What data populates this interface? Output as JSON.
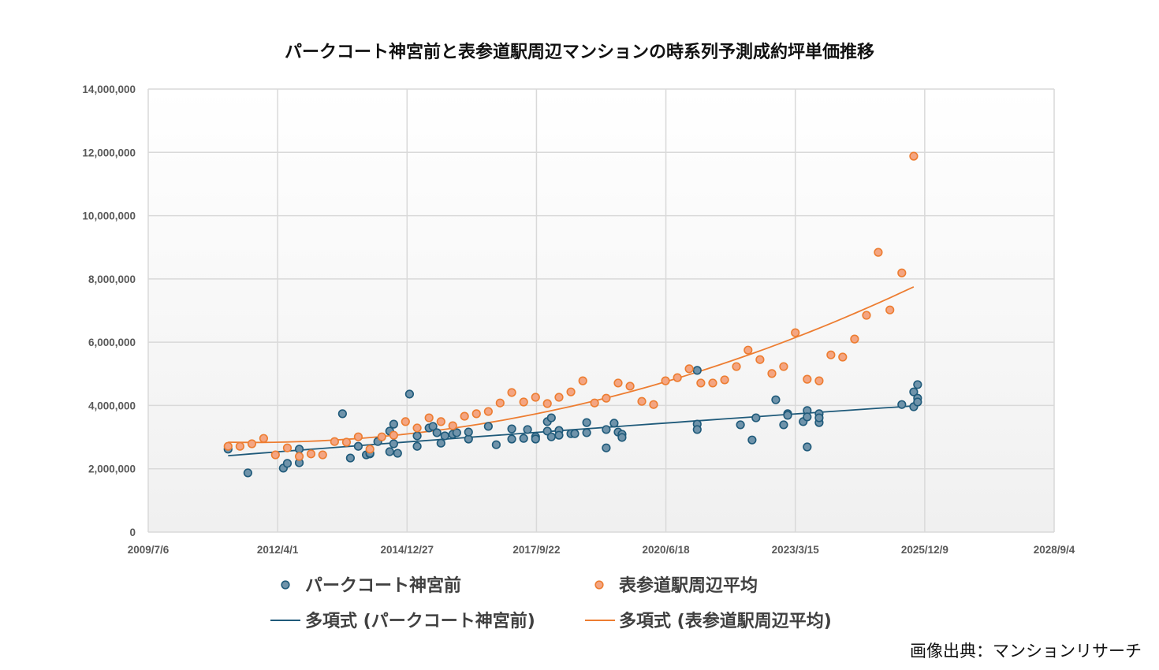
{
  "chart_data": {
    "type": "scatter",
    "title": "パークコート神宮前と表参道駅周辺マンションの時系列予測成約坪単価推移",
    "xlabel": "",
    "ylabel": "",
    "xlim": [
      "2009/7/6",
      "2028/9/4"
    ],
    "x_ticks": [
      "2009/7/6",
      "2012/4/1",
      "2014/12/27",
      "2017/9/22",
      "2020/6/18",
      "2023/3/15",
      "2025/12/9",
      "2028/9/4"
    ],
    "ylim": [
      0,
      14000000
    ],
    "y_ticks": [
      0,
      2000000,
      4000000,
      6000000,
      8000000,
      10000000,
      12000000,
      14000000
    ],
    "y_tick_labels": [
      "0",
      "2,000,000",
      "4,000,000",
      "6,000,000",
      "8,000,000",
      "10,000,000",
      "12,000,000",
      "14,000,000"
    ],
    "grid": true,
    "legend_position": "bottom",
    "series": [
      {
        "name": "パークコート神宮前",
        "color": "#1f5a7a",
        "fill": "#6f93aa",
        "trendline": {
          "type": "polynomial",
          "order": 2,
          "name": "多項式 (パークコート神宮前)"
        },
        "points": [
          [
            "2011/3",
            2620000
          ],
          [
            "2011/8",
            1870000
          ],
          [
            "2012/5",
            2020000
          ],
          [
            "2012/6",
            2170000
          ],
          [
            "2012/9",
            2190000
          ],
          [
            "2012/9",
            2620000
          ],
          [
            "2013/8",
            3740000
          ],
          [
            "2013/10",
            2340000
          ],
          [
            "2013/12",
            2710000
          ],
          [
            "2014/2",
            2440000
          ],
          [
            "2014/3",
            2470000
          ],
          [
            "2014/3",
            2490000
          ],
          [
            "2014/5",
            2860000
          ],
          [
            "2014/8",
            2540000
          ],
          [
            "2014/8",
            3190000
          ],
          [
            "2014/9",
            2790000
          ],
          [
            "2014/9",
            3410000
          ],
          [
            "2014/10",
            2490000
          ],
          [
            "2015/1",
            4360000
          ],
          [
            "2015/3",
            2710000
          ],
          [
            "2015/3",
            3040000
          ],
          [
            "2015/6",
            3290000
          ],
          [
            "2015/7",
            3340000
          ],
          [
            "2015/8",
            3140000
          ],
          [
            "2015/9",
            2810000
          ],
          [
            "2015/10",
            3040000
          ],
          [
            "2015/12",
            3090000
          ],
          [
            "2016/1",
            3140000
          ],
          [
            "2016/4",
            2940000
          ],
          [
            "2016/4",
            3160000
          ],
          [
            "2016/9",
            3340000
          ],
          [
            "2016/11",
            2760000
          ],
          [
            "2017/3",
            2940000
          ],
          [
            "2017/3",
            3260000
          ],
          [
            "2017/6",
            2960000
          ],
          [
            "2017/7",
            3240000
          ],
          [
            "2017/9",
            3010000
          ],
          [
            "2017/9",
            2940000
          ],
          [
            "2017/12",
            3190000
          ],
          [
            "2017/12",
            3490000
          ],
          [
            "2018/1",
            3610000
          ],
          [
            "2018/1",
            3010000
          ],
          [
            "2018/3",
            3210000
          ],
          [
            "2018/3",
            3060000
          ],
          [
            "2018/6",
            3110000
          ],
          [
            "2018/7",
            3110000
          ],
          [
            "2018/10",
            3460000
          ],
          [
            "2018/10",
            3140000
          ],
          [
            "2019/3",
            2660000
          ],
          [
            "2019/3",
            3240000
          ],
          [
            "2019/5",
            3440000
          ],
          [
            "2019/6",
            3160000
          ],
          [
            "2019/7",
            3090000
          ],
          [
            "2019/7",
            2990000
          ],
          [
            "2021/2",
            3410000
          ],
          [
            "2021/2",
            3240000
          ],
          [
            "2021/2",
            5110000
          ],
          [
            "2022/1",
            3390000
          ],
          [
            "2022/4",
            2910000
          ],
          [
            "2022/5",
            3610000
          ],
          [
            "2022/10",
            4180000
          ],
          [
            "2022/12",
            3390000
          ],
          [
            "2023/1",
            3740000
          ],
          [
            "2023/1",
            3690000
          ],
          [
            "2023/6",
            2690000
          ],
          [
            "2023/5",
            3490000
          ],
          [
            "2023/6",
            3840000
          ],
          [
            "2023/6",
            3640000
          ],
          [
            "2023/9",
            3460000
          ],
          [
            "2023/9",
            3740000
          ],
          [
            "2023/9",
            3610000
          ],
          [
            "2025/6",
            4030000
          ],
          [
            "2025/9",
            3960000
          ],
          [
            "2025/9",
            4430000
          ],
          [
            "2025/10",
            4230000
          ],
          [
            "2025/10",
            4110000
          ],
          [
            "2025/10",
            4660000
          ]
        ]
      },
      {
        "name": "表参道駅周辺平均",
        "color": "#ed7d31",
        "fill": "#f4a582",
        "trendline": {
          "type": "polynomial",
          "order": 2,
          "name": "多項式 (表参道駅周辺平均)"
        },
        "points": [
          [
            "2011/3",
            2710000
          ],
          [
            "2011/6",
            2710000
          ],
          [
            "2011/9",
            2790000
          ],
          [
            "2011/12",
            2960000
          ],
          [
            "2012/3",
            2440000
          ],
          [
            "2012/6",
            2660000
          ],
          [
            "2012/9",
            2390000
          ],
          [
            "2012/12",
            2470000
          ],
          [
            "2013/3",
            2440000
          ],
          [
            "2013/6",
            2860000
          ],
          [
            "2013/9",
            2840000
          ],
          [
            "2013/12",
            3010000
          ],
          [
            "2014/3",
            2620000
          ],
          [
            "2014/6",
            3010000
          ],
          [
            "2014/9",
            3060000
          ],
          [
            "2014/12",
            3490000
          ],
          [
            "2015/3",
            3290000
          ],
          [
            "2015/6",
            3610000
          ],
          [
            "2015/9",
            3490000
          ],
          [
            "2015/12",
            3360000
          ],
          [
            "2016/3",
            3660000
          ],
          [
            "2016/6",
            3740000
          ],
          [
            "2016/9",
            3810000
          ],
          [
            "2016/12",
            4080000
          ],
          [
            "2017/3",
            4410000
          ],
          [
            "2017/6",
            4110000
          ],
          [
            "2017/9",
            4260000
          ],
          [
            "2017/12",
            4060000
          ],
          [
            "2018/3",
            4260000
          ],
          [
            "2018/6",
            4430000
          ],
          [
            "2018/9",
            4780000
          ],
          [
            "2018/12",
            4080000
          ],
          [
            "2019/3",
            4230000
          ],
          [
            "2019/6",
            4710000
          ],
          [
            "2019/9",
            4610000
          ],
          [
            "2019/12",
            4130000
          ],
          [
            "2020/3",
            4030000
          ],
          [
            "2020/6",
            4780000
          ],
          [
            "2020/9",
            4880000
          ],
          [
            "2020/12",
            5160000
          ],
          [
            "2021/3",
            4710000
          ],
          [
            "2021/6",
            4710000
          ],
          [
            "2021/9",
            4810000
          ],
          [
            "2021/12",
            5230000
          ],
          [
            "2022/3",
            5750000
          ],
          [
            "2022/6",
            5450000
          ],
          [
            "2022/9",
            5010000
          ],
          [
            "2022/12",
            5230000
          ],
          [
            "2023/3",
            6300000
          ],
          [
            "2023/6",
            4830000
          ],
          [
            "2023/9",
            4780000
          ],
          [
            "2023/12",
            5600000
          ],
          [
            "2024/3",
            5530000
          ],
          [
            "2024/6",
            6100000
          ],
          [
            "2024/9",
            6850000
          ],
          [
            "2024/12",
            8840000
          ],
          [
            "2025/3",
            7020000
          ],
          [
            "2025/6",
            8190000
          ],
          [
            "2025/9",
            11880000
          ]
        ]
      }
    ]
  },
  "source_note": "画像出典：マンションリサーチ"
}
